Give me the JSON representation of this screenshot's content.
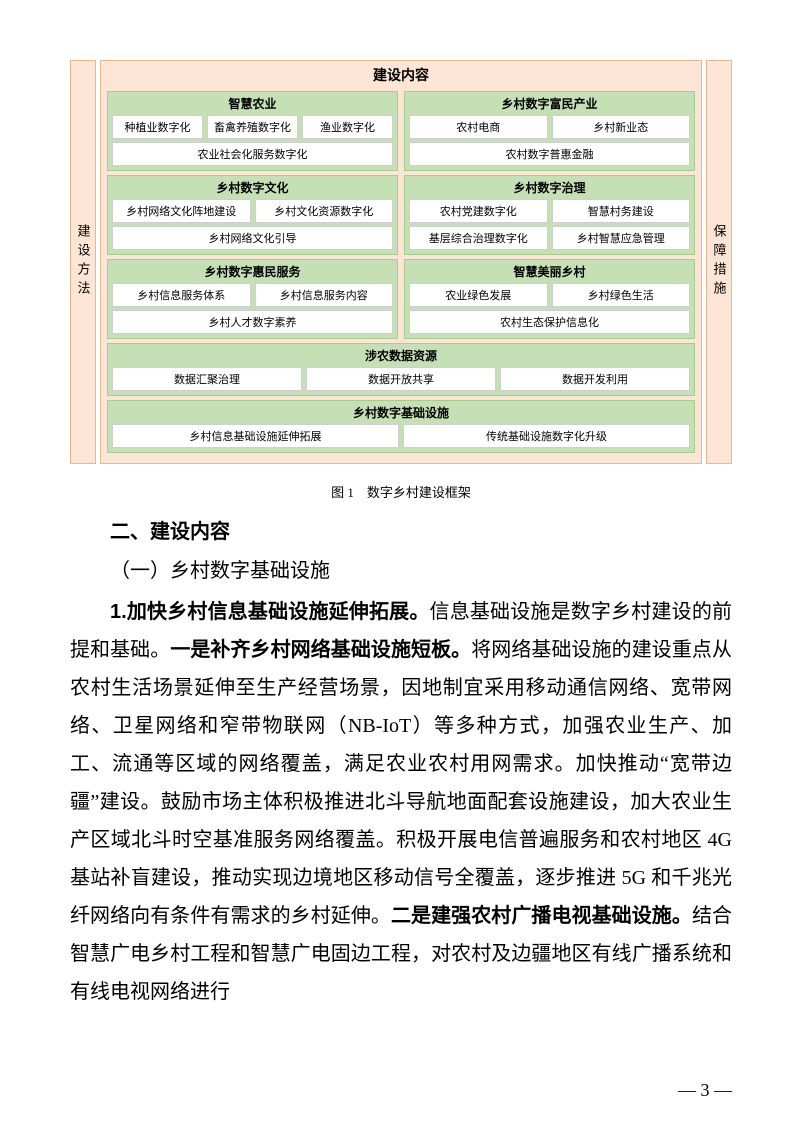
{
  "colors": {
    "peach_bg": "#fde5d6",
    "peach_border": "#e8b890",
    "green_bg": "#c5e0b4",
    "green_border": "#a8cc8f",
    "white_box_border": "#cfcfcf",
    "text": "#000000",
    "page_bg": "#ffffff"
  },
  "figure": {
    "left_label": "建设方法",
    "right_label": "保障措施",
    "center_title": "建设内容",
    "row1": {
      "left": {
        "title": "智慧农业",
        "items_top": [
          "种植业数字化",
          "畜禽养殖数字化",
          "渔业数字化"
        ],
        "items_bottom": [
          "农业社会化服务数字化"
        ]
      },
      "right": {
        "title": "乡村数字富民产业",
        "items_top": [
          "农村电商",
          "乡村新业态"
        ],
        "items_bottom": [
          "农村数字普惠金融"
        ]
      }
    },
    "row2": {
      "left": {
        "title": "乡村数字文化",
        "items_top": [
          "乡村网络文化阵地建设",
          "乡村文化资源数字化"
        ],
        "items_bottom": [
          "乡村网络文化引导"
        ]
      },
      "right": {
        "title": "乡村数字治理",
        "items_top": [
          "农村党建数字化",
          "智慧村务建设"
        ],
        "items_bottom": [
          "基层综合治理数字化",
          "乡村智慧应急管理"
        ]
      }
    },
    "row3": {
      "left": {
        "title": "乡村数字惠民服务",
        "items_top": [
          "乡村信息服务体系",
          "乡村信息服务内容"
        ],
        "items_bottom": [
          "乡村人才数字素养"
        ]
      },
      "right": {
        "title": "智慧美丽乡村",
        "items_top": [
          "农业绿色发展",
          "乡村绿色生活"
        ],
        "items_bottom": [
          "农村生态保护信息化"
        ]
      }
    },
    "row4": {
      "title": "涉农数据资源",
      "items": [
        "数据汇聚治理",
        "数据开放共享",
        "数据开发利用"
      ]
    },
    "row5": {
      "title": "乡村数字基础设施",
      "items": [
        "乡村信息基础设施延伸拓展",
        "传统基础设施数字化升级"
      ]
    }
  },
  "caption": "图 1　数字乡村建设框架",
  "heading2": "二、建设内容",
  "heading3": "（一）乡村数字基础设施",
  "body": {
    "b1": "1.加快乡村信息基础设施延伸拓展。",
    "t1": "信息基础设施是数字乡村建设的前提和基础。",
    "b2": "一是补齐乡村网络基础设施短板。",
    "t2": "将网络基础设施的建设重点从农村生活场景延伸至生产经营场景，因地制宜采用移动通信网络、宽带网络、卫星网络和窄带物联网（NB-IoT）等多种方式，加强农业生产、加工、流通等区域的网络覆盖，满足农业农村用网需求。加快推动“宽带边疆”建设。鼓励市场主体积极推进北斗导航地面配套设施建设，加大农业生产区域北斗时空基准服务网络覆盖。积极开展电信普遍服务和农村地区 4G 基站补盲建设，推动实现边境地区移动信号全覆盖，逐步推进 5G 和千兆光纤网络向有条件有需求的乡村延伸。",
    "b3": "二是建强农村广播电视基础设施。",
    "t3": "结合智慧广电乡村工程和智慧广电固边工程，对农村及边疆地区有线广播系统和有线电视网络进行"
  },
  "page_number": "— 3 —"
}
